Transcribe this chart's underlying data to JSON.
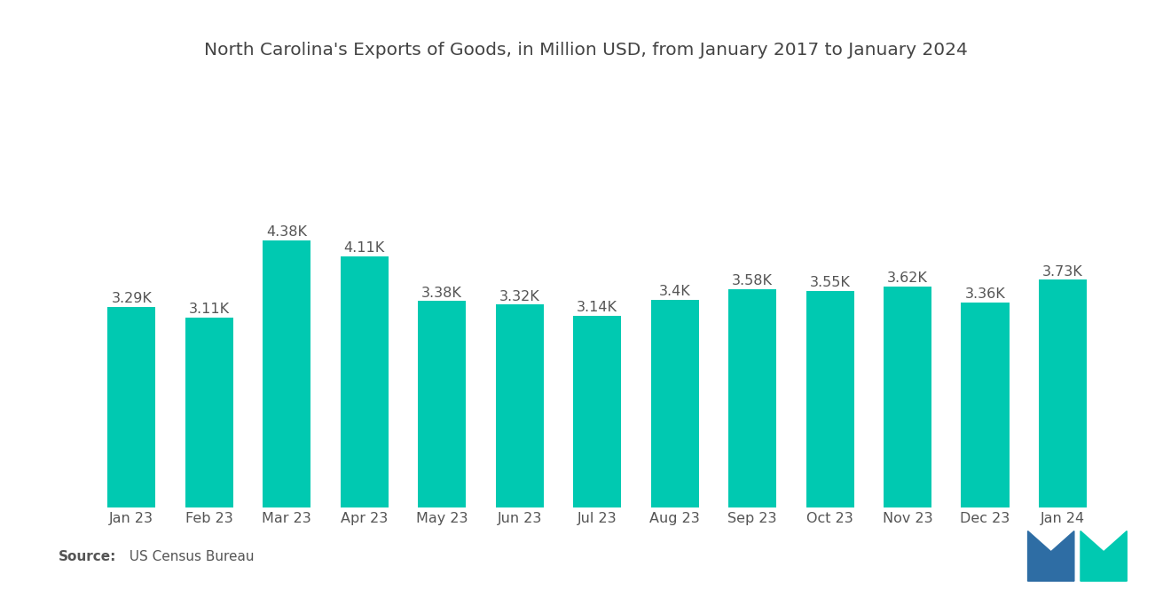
{
  "title": "North Carolina's Exports of Goods, in Million USD, from January 2017 to January 2024",
  "categories": [
    "Jan 23",
    "Feb 23",
    "Mar 23",
    "Apr 23",
    "May 23",
    "Jun 23",
    "Jul 23",
    "Aug 23",
    "Sep 23",
    "Oct 23",
    "Nov 23",
    "Dec 23",
    "Jan 24"
  ],
  "values": [
    3290,
    3110,
    4380,
    4110,
    3380,
    3320,
    3140,
    3400,
    3580,
    3550,
    3620,
    3360,
    3730
  ],
  "labels": [
    "3.29K",
    "3.11K",
    "4.38K",
    "4.11K",
    "3.38K",
    "3.32K",
    "3.14K",
    "3.4K",
    "3.58K",
    "3.55K",
    "3.62K",
    "3.36K",
    "3.73K"
  ],
  "bar_color": "#00C9B1",
  "background_color": "#ffffff",
  "title_fontsize": 14.5,
  "label_fontsize": 11.5,
  "tick_fontsize": 11.5,
  "source_bold": "Source:",
  "source_normal": "  US Census Bureau",
  "source_fontsize": 11
}
